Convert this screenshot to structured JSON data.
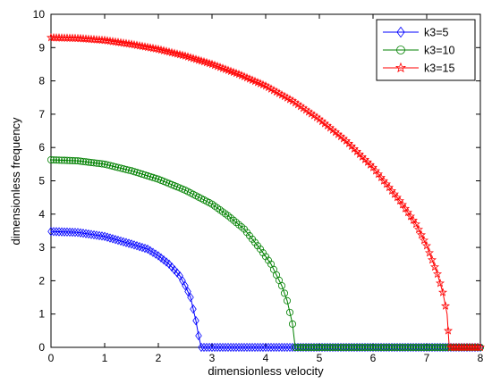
{
  "chart_data": {
    "type": "line",
    "title": "",
    "xlabel": "dimensionless velocity",
    "ylabel": "dimensionless frequency",
    "xlim": [
      0,
      8
    ],
    "ylim": [
      0,
      10
    ],
    "x_ticks": [
      "0",
      "1",
      "2",
      "3",
      "4",
      "5",
      "6",
      "7",
      "8"
    ],
    "y_ticks": [
      "0",
      "1",
      "2",
      "3",
      "4",
      "5",
      "6",
      "7",
      "8",
      "9",
      "10"
    ],
    "grid": false,
    "legend_position": "top-right",
    "series": [
      {
        "name": "k3=5",
        "marker": "diamond",
        "color": "#0000ff",
        "x": [
          0,
          0.5,
          1.0,
          1.5,
          1.8,
          2.0,
          2.2,
          2.4,
          2.5,
          2.6,
          2.7,
          2.75,
          2.8,
          3.5,
          4.5,
          5.5,
          6.5,
          7.5,
          8
        ],
        "y": [
          3.48,
          3.45,
          3.33,
          3.1,
          2.95,
          2.75,
          2.5,
          2.15,
          1.85,
          1.5,
          0.8,
          0.35,
          0,
          0,
          0,
          0,
          0,
          0,
          0
        ]
      },
      {
        "name": "k3=10",
        "marker": "circle",
        "color": "#008000",
        "x": [
          0,
          0.5,
          1.0,
          1.5,
          2.0,
          2.5,
          3.0,
          3.3,
          3.6,
          3.9,
          4.1,
          4.3,
          4.4,
          4.5,
          4.55,
          5.5,
          6.5,
          7.5,
          8
        ],
        "y": [
          5.63,
          5.6,
          5.5,
          5.3,
          5.05,
          4.72,
          4.3,
          3.95,
          3.55,
          2.95,
          2.5,
          1.85,
          1.4,
          0.7,
          0,
          0,
          0,
          0,
          0
        ]
      },
      {
        "name": "k3=15",
        "marker": "pentagram",
        "color": "#ff0000",
        "x": [
          0,
          0.5,
          1.0,
          1.5,
          2.0,
          2.5,
          3.0,
          3.5,
          4.0,
          4.5,
          5.0,
          5.5,
          6.0,
          6.5,
          6.8,
          7.0,
          7.2,
          7.3,
          7.38,
          7.42,
          7.5,
          8
        ],
        "y": [
          9.3,
          9.28,
          9.22,
          9.1,
          8.95,
          8.75,
          8.5,
          8.2,
          7.85,
          7.4,
          6.85,
          6.2,
          5.4,
          4.4,
          3.7,
          3.05,
          2.2,
          1.65,
          1.0,
          0,
          0,
          0
        ]
      }
    ]
  }
}
